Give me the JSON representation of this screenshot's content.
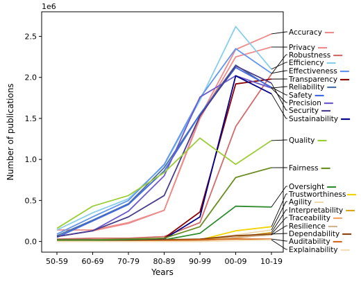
{
  "chart_data": {
    "type": "line",
    "xlabel": "Years",
    "ylabel": "Number of publications",
    "y_offset_text": "1e6",
    "categories": [
      "50-59",
      "60-69",
      "70-79",
      "80-89",
      "90-99",
      "00-09",
      "10-19"
    ],
    "ylim": [
      -0.13,
      2.8
    ],
    "yticks": [
      0.0,
      0.5,
      1.0,
      1.5,
      2.0,
      2.5
    ],
    "ytick_labels": [
      "0.0",
      "0.5",
      "1.0",
      "1.5",
      "2.0",
      "2.5"
    ],
    "grid": false,
    "legend_placement": "right, labels connected to line ends",
    "series": [
      {
        "name": "Accuracy",
        "color": "#ef8a8a",
        "values": [
          0.14,
          0.14,
          0.23,
          0.38,
          1.52,
          2.34,
          2.53
        ]
      },
      {
        "name": "Privacy",
        "color": "#ee8a8a",
        "values": [
          0.06,
          0.13,
          0.22,
          0.38,
          1.5,
          2.25,
          2.37
        ]
      },
      {
        "name": "Robustness",
        "color": "#d36a6a",
        "values": [
          0.03,
          0.04,
          0.04,
          0.06,
          0.23,
          1.4,
          2.04
        ]
      },
      {
        "name": "Efficiency",
        "color": "#87ceeb",
        "values": [
          0.14,
          0.35,
          0.52,
          0.93,
          1.72,
          2.62,
          2.1
        ]
      },
      {
        "name": "Effectiveness",
        "color": "#6495ed",
        "values": [
          0.09,
          0.3,
          0.5,
          0.94,
          1.75,
          2.35,
          2.05
        ]
      },
      {
        "name": "Transparency",
        "color": "#8b0000",
        "values": [
          0.02,
          0.02,
          0.02,
          0.04,
          0.36,
          1.92,
          1.98
        ]
      },
      {
        "name": "Reliability",
        "color": "#4a6ea0",
        "values": [
          0.07,
          0.26,
          0.46,
          0.9,
          1.55,
          2.15,
          1.87
        ]
      },
      {
        "name": "Safety",
        "color": "#4169e1",
        "values": [
          0.05,
          0.25,
          0.45,
          0.86,
          1.55,
          2.12,
          1.88
        ]
      },
      {
        "name": "Precision",
        "color": "#6a5acd",
        "values": [
          0.06,
          0.13,
          0.37,
          0.8,
          1.76,
          2.02,
          1.87
        ]
      },
      {
        "name": "Security",
        "color": "#483d8b",
        "values": [
          0.06,
          0.13,
          0.3,
          0.56,
          1.53,
          2.14,
          1.93
        ]
      },
      {
        "name": "Sustainability",
        "color": "#00008b",
        "values": [
          0.02,
          0.02,
          0.02,
          0.03,
          0.3,
          2.02,
          1.8
        ]
      },
      {
        "name": "Quality",
        "color": "#9acd32",
        "values": [
          0.16,
          0.43,
          0.56,
          0.84,
          1.26,
          0.94,
          1.23
        ]
      },
      {
        "name": "Fairness",
        "color": "#6b8e23",
        "values": [
          0.02,
          0.02,
          0.03,
          0.04,
          0.18,
          0.78,
          0.9
        ]
      },
      {
        "name": "Oversight",
        "color": "#2e8b2e",
        "values": [
          0.01,
          0.01,
          0.02,
          0.02,
          0.1,
          0.43,
          0.42
        ]
      },
      {
        "name": "Trustworthiness",
        "color": "#f2d300",
        "values": [
          0.0,
          0.0,
          0.0,
          0.01,
          0.02,
          0.13,
          0.18
        ]
      },
      {
        "name": "Agility",
        "color": "#ecd9a8",
        "values": [
          0.0,
          0.0,
          0.0,
          0.0,
          0.02,
          0.08,
          0.14
        ]
      },
      {
        "name": "Interpretability",
        "color": "#daa520",
        "values": [
          0.0,
          0.0,
          0.0,
          0.01,
          0.02,
          0.05,
          0.11
        ]
      },
      {
        "name": "Traceability",
        "color": "#f4a460",
        "values": [
          0.0,
          0.0,
          0.0,
          0.01,
          0.01,
          0.04,
          0.09
        ]
      },
      {
        "name": "Resilience",
        "color": "#d2b48c",
        "values": [
          0.0,
          0.0,
          0.0,
          0.0,
          0.01,
          0.05,
          0.08
        ]
      },
      {
        "name": "Dependability",
        "color": "#8b4513",
        "values": [
          0.0,
          0.0,
          0.01,
          0.02,
          0.03,
          0.07,
          0.09
        ]
      },
      {
        "name": "Auditability",
        "color": "#d2691e",
        "values": [
          0.0,
          0.0,
          0.0,
          0.01,
          0.02,
          0.03,
          0.03
        ]
      },
      {
        "name": "Explainability",
        "color": "#f5deb3",
        "values": [
          0.0,
          0.0,
          0.0,
          0.0,
          0.0,
          0.01,
          0.02
        ]
      }
    ]
  }
}
